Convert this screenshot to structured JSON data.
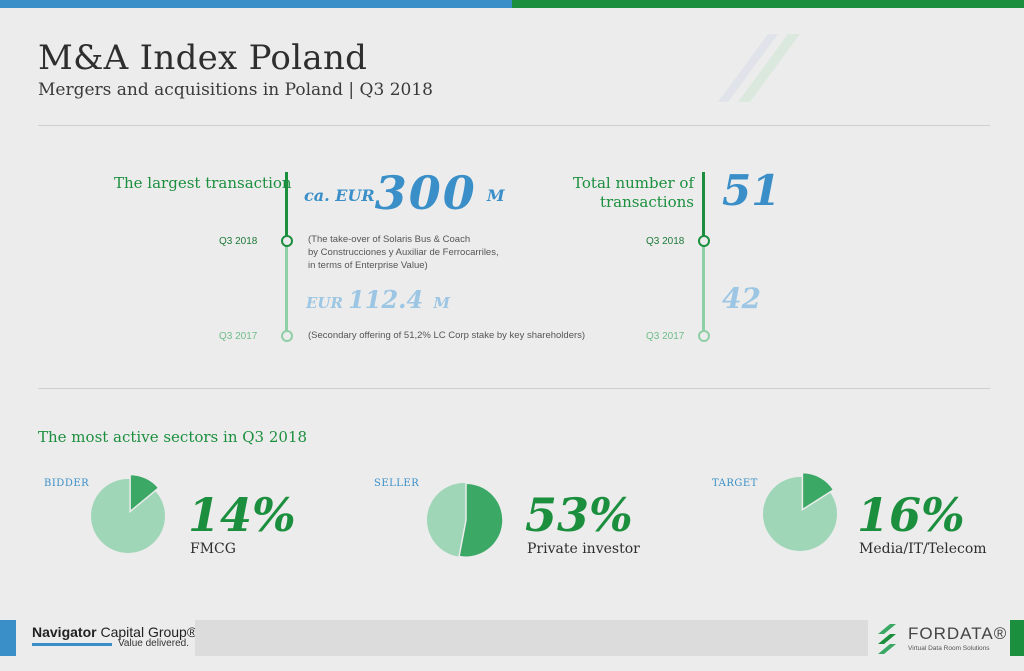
{
  "header": {
    "title": "M&A Index Poland",
    "subtitle": "Mergers and acquisitions in Poland | Q3 2018"
  },
  "largest_transaction": {
    "label": "The largest transaction",
    "current": {
      "period": "Q3 2018",
      "prefix": "ca. EUR",
      "value": "300",
      "suffix": "M",
      "note_lines": [
        "(The take-over of Solaris Bus & Coach",
        "by Construcciones y Auxiliar de Ferrocarriles,",
        "in terms of Enterprise Value)"
      ]
    },
    "previous": {
      "period": "Q3 2017",
      "prefix": "EUR",
      "value": "112.4",
      "suffix": "M",
      "note": "(Secondary offering of 51,2% LC Corp stake by key shareholders)"
    }
  },
  "total_transactions": {
    "label_lines": [
      "Total number of",
      "transactions"
    ],
    "current": {
      "period": "Q3 2018",
      "value": "51"
    },
    "previous": {
      "period": "Q3 2017",
      "value": "42"
    }
  },
  "sectors": {
    "title": "The most active sectors in Q3 2018",
    "items": [
      {
        "role": "BIDDER",
        "percent_label": "14%",
        "share": 0.14,
        "sector": "FMCG"
      },
      {
        "role": "SELLER",
        "percent_label": "53%",
        "share": 0.53,
        "sector": "Private investor"
      },
      {
        "role": "TARGET",
        "percent_label": "16%",
        "share": 0.16,
        "sector": "Media/IT/Telecom"
      }
    ]
  },
  "footer": {
    "left_brand_bold": "Navigator",
    "left_brand_rest": "Capital Group®",
    "left_tagline": "Value delivered.",
    "right_brand": "FORDATA®",
    "right_tagline": "Virtual Data Room Solutions"
  },
  "colors": {
    "green": "#1b8f3e",
    "light_green": "#9fd6b8",
    "mid_green": "#3ba866",
    "blue": "#3a8fc8",
    "light_blue": "#9cc6e3"
  }
}
